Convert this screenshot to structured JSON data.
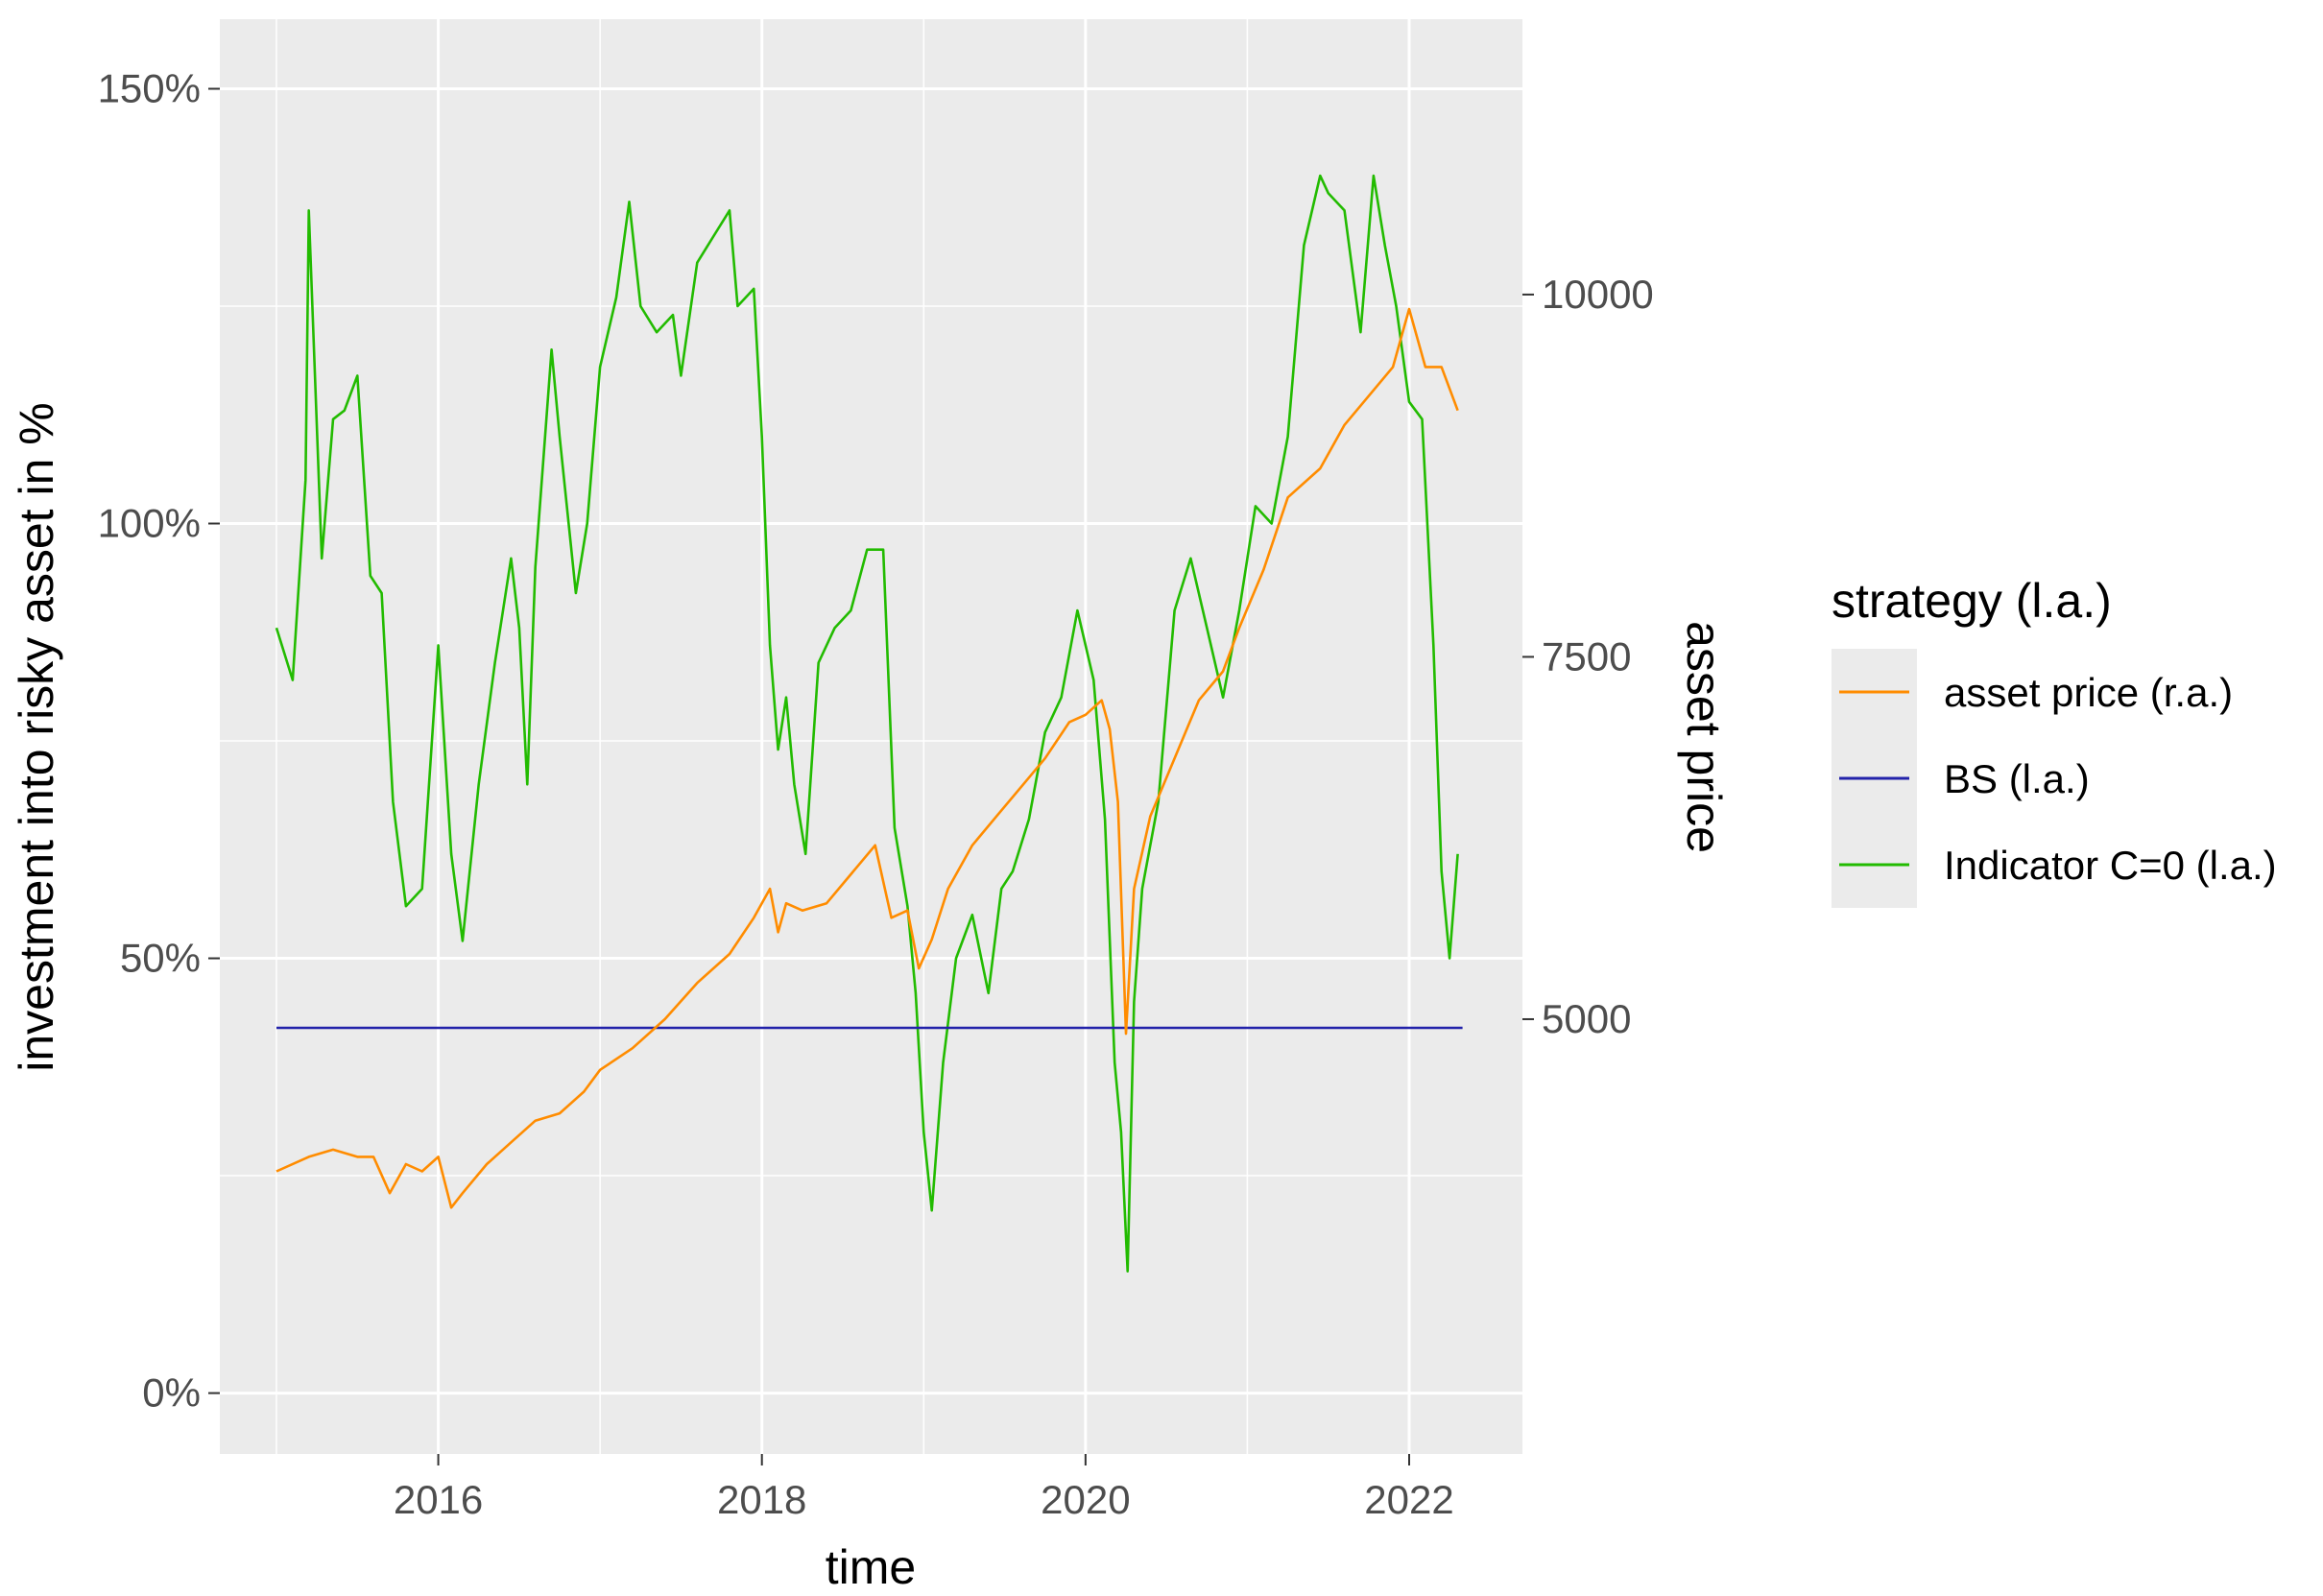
{
  "chart_data": {
    "type": "line",
    "xlabel": "time",
    "ylabel_left": "investment into risky asset in %",
    "ylabel_right": "asset price",
    "x_ticks": [
      "2016",
      "2018",
      "2020",
      "2022"
    ],
    "x_tick_values": [
      2016,
      2018,
      2020,
      2022
    ],
    "xlim": [
      2014.65,
      2022.7
    ],
    "y_left_ticks": [
      "0%",
      "50%",
      "100%",
      "150%"
    ],
    "y_left_tick_values": [
      0,
      50,
      100,
      150
    ],
    "ylim_left": [
      -7,
      158
    ],
    "y_right_ticks": [
      "5000",
      "7500",
      "10000"
    ],
    "y_right_tick_values": [
      5000,
      7500,
      10000
    ],
    "ylim_right": [
      2000,
      11900
    ],
    "grid": true,
    "legend": {
      "title": "strategy (l.a.)",
      "position": "right",
      "entries": [
        {
          "label": "asset price (r.a.)",
          "color": "#ff8c00"
        },
        {
          "label": "BS (l.a.)",
          "color": "#2222aa"
        },
        {
          "label": "Indicator C=0 (l.a.)",
          "color": "#22bb00"
        }
      ]
    },
    "series": [
      {
        "name": "Indicator C=0 (l.a.)",
        "axis": "left",
        "color": "#22bb00",
        "x": [
          2015.0,
          2015.1,
          2015.18,
          2015.2,
          2015.28,
          2015.35,
          2015.42,
          2015.5,
          2015.58,
          2015.65,
          2015.72,
          2015.8,
          2015.9,
          2016.0,
          2016.08,
          2016.15,
          2016.25,
          2016.35,
          2016.45,
          2016.5,
          2016.55,
          2016.6,
          2016.7,
          2016.75,
          2016.85,
          2016.92,
          2017.0,
          2017.1,
          2017.18,
          2017.25,
          2017.35,
          2017.45,
          2017.5,
          2017.6,
          2017.7,
          2017.8,
          2017.85,
          2017.95,
          2018.0,
          2018.05,
          2018.1,
          2018.15,
          2018.2,
          2018.27,
          2018.35,
          2018.45,
          2018.55,
          2018.65,
          2018.75,
          2018.82,
          2018.9,
          2018.95,
          2019.0,
          2019.05,
          2019.12,
          2019.2,
          2019.3,
          2019.4,
          2019.48,
          2019.55,
          2019.65,
          2019.75,
          2019.85,
          2019.95,
          2020.05,
          2020.12,
          2020.18,
          2020.22,
          2020.26,
          2020.3,
          2020.35,
          2020.45,
          2020.55,
          2020.65,
          2020.75,
          2020.85,
          2020.95,
          2021.05,
          2021.15,
          2021.25,
          2021.35,
          2021.45,
          2021.5,
          2021.6,
          2021.7,
          2021.78,
          2021.85,
          2021.92,
          2022.0,
          2022.08,
          2022.15,
          2022.2,
          2022.25,
          2022.3
        ],
        "values": [
          88,
          82,
          105,
          136,
          96,
          112,
          113,
          117,
          94,
          92,
          68,
          56,
          58,
          86,
          62,
          52,
          70,
          84,
          96,
          88,
          70,
          95,
          120,
          110,
          92,
          100,
          118,
          126,
          137,
          125,
          122,
          124,
          117,
          130,
          133,
          136,
          125,
          127,
          110,
          86,
          74,
          80,
          70,
          62,
          84,
          88,
          90,
          97,
          97,
          65,
          56,
          46,
          30,
          21,
          38,
          50,
          55,
          46,
          58,
          60,
          66,
          76,
          80,
          90,
          82,
          66,
          38,
          30,
          14,
          45,
          58,
          68,
          90,
          96,
          88,
          80,
          90,
          102,
          100,
          110,
          132,
          140,
          138,
          136,
          122,
          140,
          132,
          125,
          114,
          112,
          86,
          60,
          50,
          62
        ]
      },
      {
        "name": "BS (l.a.)",
        "axis": "left",
        "color": "#2222aa",
        "x": [
          2015.0,
          2022.33
        ],
        "values": [
          42,
          42
        ]
      },
      {
        "name": "asset price (r.a.)",
        "axis": "right",
        "color": "#ff8c00",
        "x": [
          2015.0,
          2015.2,
          2015.35,
          2015.5,
          2015.6,
          2015.7,
          2015.8,
          2015.9,
          2016.0,
          2016.08,
          2016.15,
          2016.3,
          2016.45,
          2016.6,
          2016.75,
          2016.9,
          2017.0,
          2017.2,
          2017.4,
          2017.6,
          2017.8,
          2017.95,
          2018.05,
          2018.1,
          2018.15,
          2018.25,
          2018.4,
          2018.55,
          2018.7,
          2018.8,
          2018.9,
          2018.97,
          2019.05,
          2019.15,
          2019.3,
          2019.45,
          2019.6,
          2019.75,
          2019.9,
          2020.0,
          2020.1,
          2020.15,
          2020.2,
          2020.25,
          2020.3,
          2020.4,
          2020.55,
          2020.7,
          2020.85,
          2020.95,
          2021.1,
          2021.25,
          2021.45,
          2021.6,
          2021.75,
          2021.9,
          2022.0,
          2022.1,
          2022.2,
          2022.3
        ],
        "values": [
          3950,
          4050,
          4100,
          4050,
          4050,
          3800,
          4000,
          3950,
          4050,
          3700,
          3800,
          4000,
          4150,
          4300,
          4350,
          4500,
          4650,
          4800,
          5000,
          5250,
          5450,
          5700,
          5900,
          5600,
          5800,
          5750,
          5800,
          6000,
          6200,
          5700,
          5750,
          5350,
          5550,
          5900,
          6200,
          6400,
          6600,
          6800,
          7050,
          7100,
          7200,
          7000,
          6500,
          4900,
          5900,
          6400,
          6800,
          7200,
          7400,
          7700,
          8100,
          8600,
          8800,
          9100,
          9300,
          9500,
          9900,
          9500,
          9500,
          9200
        ]
      }
    ]
  }
}
